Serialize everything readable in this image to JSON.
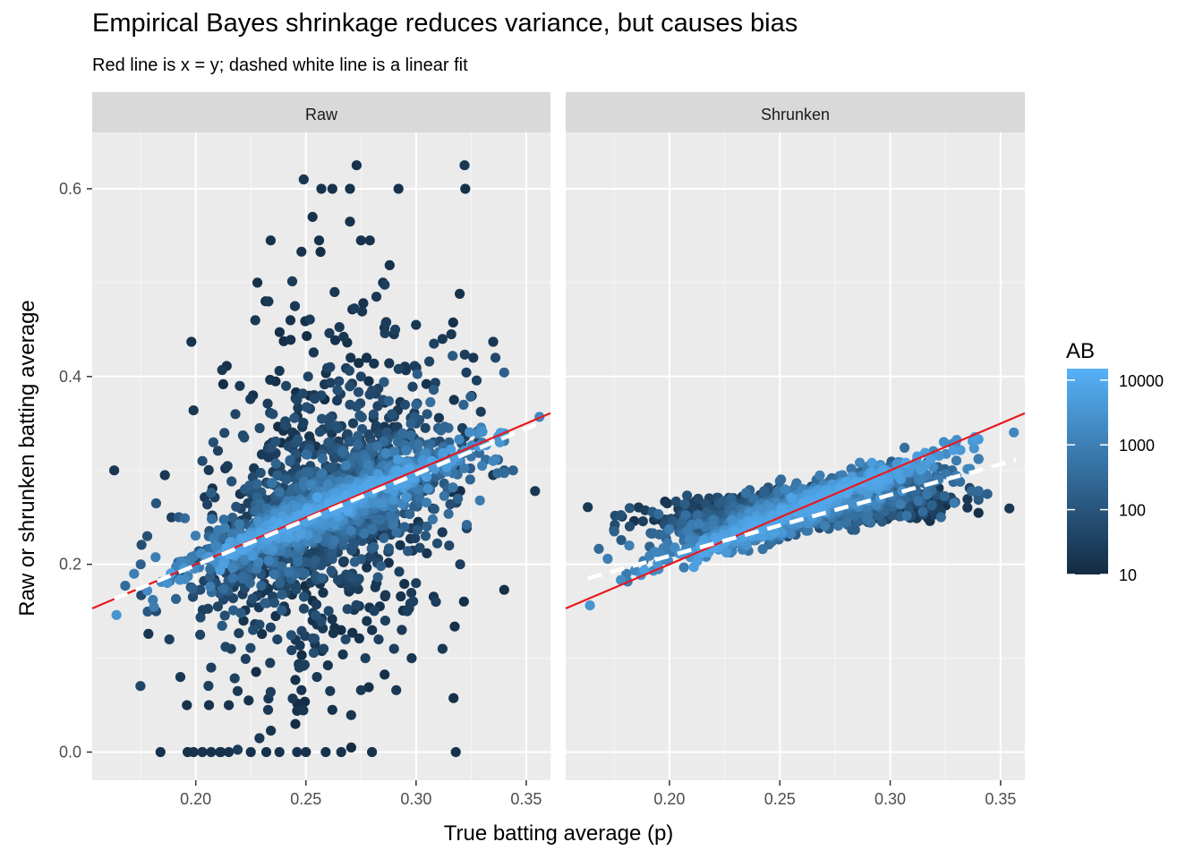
{
  "title": "Empirical Bayes shrinkage reduces variance, but causes bias",
  "subtitle": "Red line is x = y; dashed white line is a linear fit",
  "chart_data": {
    "type": "scatter",
    "xlabel": "True batting average (p)",
    "ylabel": "Raw or shrunken batting average",
    "xlim": [
      0.153,
      0.361
    ],
    "ylim": [
      -0.03,
      0.66
    ],
    "x_ticks": [
      0.2,
      0.25,
      0.3,
      0.35
    ],
    "x_tick_labels": [
      "0.20",
      "0.25",
      "0.30",
      "0.35"
    ],
    "y_ticks": [
      0.0,
      0.2,
      0.4,
      0.6
    ],
    "y_tick_labels": [
      "0.0",
      "0.2",
      "0.4",
      "0.6"
    ],
    "facets": [
      "Raw",
      "Shrunken"
    ],
    "color_scale": {
      "title": "AB",
      "type": "log10 gradient",
      "low_color": "#132b43",
      "high_color": "#56b1f7",
      "breaks": [
        10,
        100,
        1000,
        10000
      ],
      "break_labels": [
        "10",
        "100",
        "1000",
        "10000"
      ],
      "limits": [
        10,
        15000
      ]
    },
    "reference_line": {
      "label": "x = y",
      "color": "#e8191f",
      "intercept": 0,
      "slope": 1
    },
    "fit_lines": {
      "Raw": {
        "intercept": 0.005,
        "slope": 0.97
      },
      "Shrunken": {
        "intercept": 0.079,
        "slope": 0.65
      }
    },
    "raw_points": [
      [
        0.163,
        0.3,
        20
      ],
      [
        0.164,
        0.146,
        3000
      ],
      [
        0.172,
        0.19,
        1000
      ],
      [
        0.178,
        0.172,
        2000
      ],
      [
        0.184,
        0.0,
        15
      ],
      [
        0.186,
        0.295,
        20
      ],
      [
        0.189,
        0.25,
        30
      ],
      [
        0.193,
        0.08,
        20
      ],
      [
        0.198,
        0.437,
        15
      ],
      [
        0.199,
        0.364,
        20
      ],
      [
        0.199,
        0.0,
        15
      ],
      [
        0.203,
        0.0,
        15
      ],
      [
        0.207,
        0.0,
        15
      ],
      [
        0.211,
        0.0,
        15
      ],
      [
        0.215,
        0.0,
        15
      ],
      [
        0.225,
        0.0,
        15
      ],
      [
        0.232,
        0.0,
        15
      ],
      [
        0.238,
        0.0,
        15
      ],
      [
        0.246,
        0.0,
        15
      ],
      [
        0.25,
        0.0,
        15
      ],
      [
        0.259,
        0.0,
        15
      ],
      [
        0.266,
        0.0,
        15
      ],
      [
        0.28,
        0.0,
        15
      ],
      [
        0.318,
        0.0,
        15
      ],
      [
        0.212,
        0.407,
        20
      ],
      [
        0.22,
        0.39,
        20
      ],
      [
        0.226,
        0.38,
        15
      ],
      [
        0.228,
        0.5,
        15
      ],
      [
        0.233,
        0.48,
        20
      ],
      [
        0.234,
        0.545,
        15
      ],
      [
        0.238,
        0.406,
        20
      ],
      [
        0.243,
        0.46,
        15
      ],
      [
        0.248,
        0.533,
        15
      ],
      [
        0.249,
        0.61,
        20
      ],
      [
        0.253,
        0.57,
        15
      ],
      [
        0.256,
        0.545,
        15
      ],
      [
        0.257,
        0.6,
        15
      ],
      [
        0.262,
        0.6,
        15
      ],
      [
        0.27,
        0.6,
        15
      ],
      [
        0.27,
        0.565,
        15
      ],
      [
        0.273,
        0.625,
        15
      ],
      [
        0.275,
        0.545,
        15
      ],
      [
        0.279,
        0.545,
        15
      ],
      [
        0.285,
        0.5,
        15
      ],
      [
        0.292,
        0.6,
        15
      ],
      [
        0.322,
        0.625,
        20
      ],
      [
        0.227,
        0.46,
        20
      ],
      [
        0.245,
        0.475,
        20
      ],
      [
        0.263,
        0.49,
        20
      ],
      [
        0.282,
        0.485,
        20
      ],
      [
        0.29,
        0.445,
        20
      ],
      [
        0.3,
        0.455,
        20
      ],
      [
        0.312,
        0.44,
        20
      ],
      [
        0.316,
        0.445,
        20
      ],
      [
        0.326,
        0.42,
        20
      ],
      [
        0.335,
        0.437,
        20
      ],
      [
        0.321,
        0.345,
        30
      ],
      [
        0.328,
        0.33,
        50
      ],
      [
        0.336,
        0.42,
        50
      ],
      [
        0.34,
        0.3,
        100
      ],
      [
        0.344,
        0.3,
        200
      ],
      [
        0.354,
        0.278,
        20
      ],
      [
        0.356,
        0.357,
        1500
      ],
      [
        0.319,
        0.27,
        200
      ],
      [
        0.323,
        0.242,
        300
      ],
      [
        0.329,
        0.268,
        800
      ],
      [
        0.196,
        0.05,
        15
      ],
      [
        0.206,
        0.05,
        15
      ],
      [
        0.215,
        0.05,
        15
      ],
      [
        0.219,
        0.065,
        20
      ],
      [
        0.224,
        0.055,
        15
      ],
      [
        0.233,
        0.057,
        20
      ],
      [
        0.244,
        0.057,
        20
      ],
      [
        0.246,
        0.044,
        15
      ],
      [
        0.261,
        0.065,
        20
      ],
      [
        0.262,
        0.045,
        15
      ],
      [
        0.275,
        0.066,
        20
      ],
      [
        0.291,
        0.066,
        20
      ],
      [
        0.298,
        0.1,
        20
      ],
      [
        0.312,
        0.11,
        20
      ],
      [
        0.255,
        0.08,
        20
      ],
      [
        0.3,
        0.18,
        30
      ],
      [
        0.309,
        0.16,
        30
      ],
      [
        0.32,
        0.2,
        30
      ],
      [
        0.315,
        0.22,
        50
      ],
      [
        0.296,
        0.15,
        30
      ],
      [
        0.286,
        0.14,
        30
      ],
      [
        0.182,
        0.15,
        60
      ],
      [
        0.188,
        0.12,
        30
      ],
      [
        0.178,
        0.23,
        80
      ],
      [
        0.175,
        0.2,
        200
      ],
      [
        0.182,
        0.265,
        100
      ],
      [
        0.202,
        0.125,
        40
      ],
      [
        0.207,
        0.09,
        30
      ],
      [
        0.216,
        0.11,
        30
      ],
      [
        0.226,
        0.13,
        60
      ],
      [
        0.237,
        0.12,
        40
      ],
      [
        0.247,
        0.09,
        30
      ],
      [
        0.258,
        0.11,
        40
      ],
      [
        0.268,
        0.12,
        50
      ],
      [
        0.277,
        0.1,
        30
      ],
      [
        0.283,
        0.12,
        30
      ],
      [
        0.29,
        0.11,
        30
      ],
      [
        0.203,
        0.31,
        60
      ],
      [
        0.208,
        0.33,
        80
      ],
      [
        0.213,
        0.34,
        50
      ],
      [
        0.218,
        0.36,
        40
      ],
      [
        0.222,
        0.335,
        60
      ],
      [
        0.229,
        0.345,
        50
      ],
      [
        0.235,
        0.36,
        60
      ],
      [
        0.241,
        0.39,
        40
      ],
      [
        0.246,
        0.375,
        40
      ],
      [
        0.251,
        0.4,
        40
      ],
      [
        0.257,
        0.38,
        50
      ],
      [
        0.261,
        0.41,
        40
      ],
      [
        0.265,
        0.395,
        50
      ],
      [
        0.27,
        0.37,
        60
      ],
      [
        0.275,
        0.4,
        40
      ],
      [
        0.28,
        0.385,
        50
      ],
      [
        0.285,
        0.375,
        60
      ],
      [
        0.289,
        0.36,
        80
      ],
      [
        0.295,
        0.37,
        60
      ],
      [
        0.3,
        0.35,
        80
      ],
      [
        0.305,
        0.36,
        100
      ],
      [
        0.31,
        0.345,
        150
      ],
      [
        0.315,
        0.33,
        200
      ],
      [
        0.32,
        0.31,
        400
      ],
      [
        0.325,
        0.315,
        600
      ],
      [
        0.33,
        0.305,
        1000
      ],
      [
        0.335,
        0.31,
        1500
      ],
      [
        0.338,
        0.33,
        3000
      ]
    ]
  }
}
